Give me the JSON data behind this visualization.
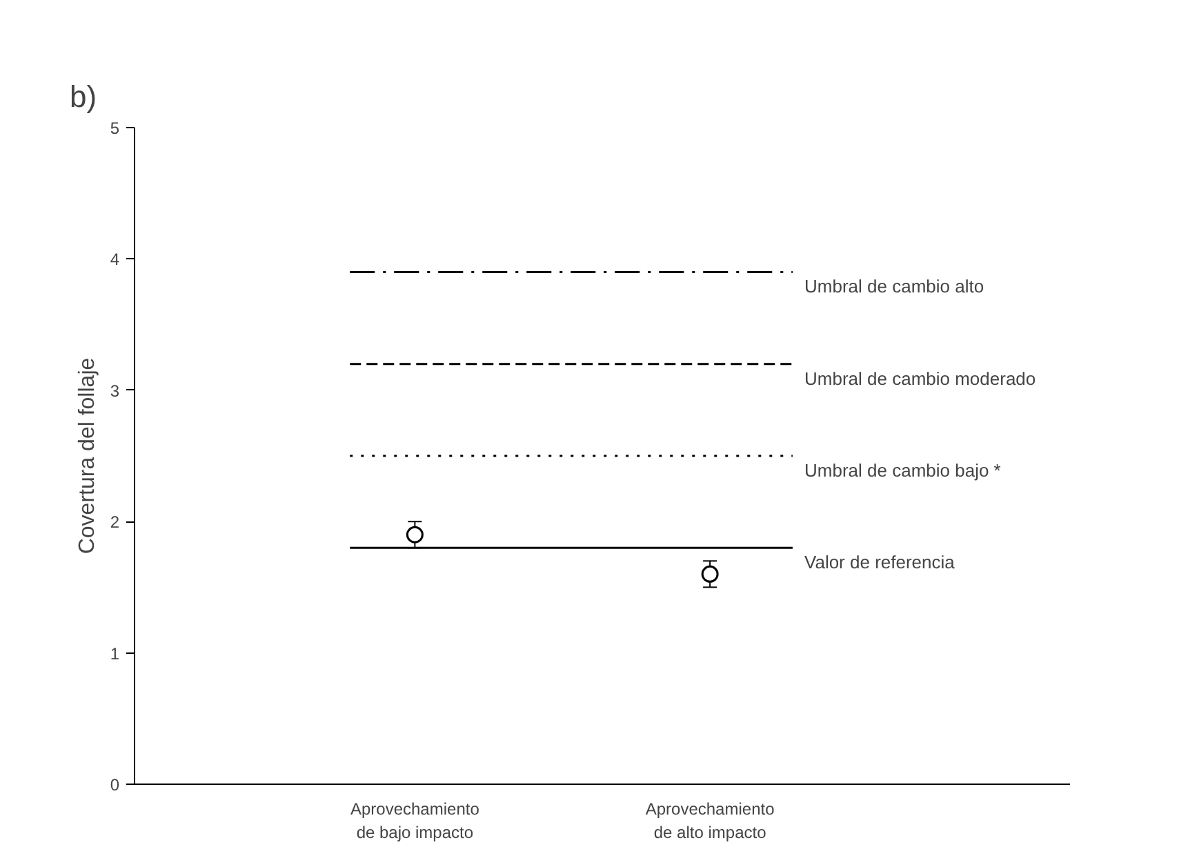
{
  "chart_data": {
    "type": "scatter",
    "title": "b)",
    "ylabel": "Covertura del follaje",
    "categories": [
      "Aprovechamiento\nde bajo impacto",
      "Aprovechamiento\nde alto impacto"
    ],
    "series": [
      {
        "color": "#000000",
        "values": [
          1.9,
          1.6
        ],
        "errors": [
          0.1,
          0.1
        ]
      }
    ],
    "marker": "circle",
    "ylim": [
      0,
      5
    ],
    "yticks": [
      0,
      1,
      2,
      3,
      4,
      5
    ],
    "grid": false,
    "ref_lines": [
      {
        "axis": "y",
        "value": 3.9,
        "label": "Umbral de cambio alto",
        "line_style": "dashdot",
        "color": "#000000"
      },
      {
        "axis": "y",
        "value": 3.2,
        "label": "Umbral de cambio moderado",
        "line_style": "dashed",
        "color": "#000000"
      },
      {
        "axis": "y",
        "value": 2.5,
        "label": "Umbral de cambio bajo *",
        "line_style": "dotted",
        "color": "#000000"
      },
      {
        "axis": "y",
        "value": 1.8,
        "label": "Valor de referencia",
        "line_style": "solid",
        "color": "#000000"
      }
    ]
  }
}
